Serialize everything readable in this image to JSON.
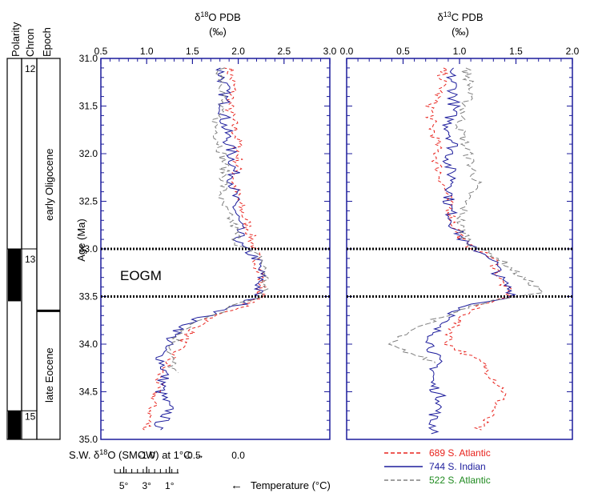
{
  "column_headers": [
    "Polarity",
    "Chron",
    "Epoch"
  ],
  "chrons": [
    {
      "label": "12",
      "age": 31.1
    },
    {
      "label": "13",
      "age": 33.1
    },
    {
      "label": "15",
      "age": 34.75
    }
  ],
  "polarity_normal_intervals": [
    [
      33.0,
      33.55
    ],
    [
      34.7,
      35.0
    ]
  ],
  "chron_boundaries": [
    33.0,
    34.7
  ],
  "epochs": [
    {
      "label": "early Oligocene",
      "from": 31.0,
      "to": 33.65
    },
    {
      "label": "late Eocene",
      "from": 33.65,
      "to": 35.0
    }
  ],
  "event_label": "EOGM",
  "event_lines": [
    33.0,
    33.5
  ],
  "bottom_axis": {
    "label": "S.W. δ¹⁸O (SMOW) at 1°C →",
    "label_pre": "S.W. δ",
    "label_sup": "18",
    "label_post": "O (SMOW) at 1°C",
    "label_arrow": "→",
    "ticks": [
      {
        "value": 1.0,
        "label": "-1.0"
      },
      {
        "value": 1.5,
        "label": "-0.5"
      },
      {
        "value": 2.0,
        "label": "0.0"
      }
    ]
  },
  "temperature_axis": {
    "label": "Temperature (°C)",
    "arrow": "←",
    "ticks": [
      {
        "value": 0.75,
        "label": "5°"
      },
      {
        "value": 1.0,
        "label": "3°"
      },
      {
        "value": 1.25,
        "label": "1°"
      }
    ],
    "range": [
      0.65,
      1.35
    ]
  },
  "colors": {
    "site_689": "#e8231d",
    "site_744": "#1c1c9c",
    "site_522": "#808080",
    "axis": "#1c1c9c",
    "label_689": "#e8231d",
    "label_744": "#1c1c9c",
    "label_522": "#1f8a1f"
  },
  "legend": [
    {
      "label": "689 S. Atlantic",
      "style": "dashed",
      "color": "#e8231d",
      "text_color": "#e8231d"
    },
    {
      "label": "744 S. Indian",
      "style": "solid",
      "color": "#1c1c9c",
      "text_color": "#1c1c9c"
    },
    {
      "label": "522 S. Atlantic",
      "style": "dashed",
      "color": "#808080",
      "text_color": "#1f8a1f"
    }
  ],
  "chart_data": [
    {
      "type": "line",
      "title": "δ¹⁸O PDB (‰)",
      "title_pre": "δ",
      "title_sup": "18",
      "title_post": "O PDB",
      "title_unit": "(‰)",
      "xlabel": "",
      "ylabel": "Age (Ma)",
      "xlim": [
        0.5,
        3.0
      ],
      "ylim": [
        35.0,
        31.0
      ],
      "x_ticks": [
        "0.5",
        "1.0",
        "1.5",
        "2.0",
        "2.5",
        "3.0"
      ],
      "y_ticks": [
        "31.0",
        "31.5",
        "32.0",
        "32.5",
        "33.0",
        "33.5",
        "34.0",
        "34.5",
        "35.0"
      ],
      "series": [
        {
          "name": "689 S. Atlantic",
          "points": [
            [
              31.1,
              1.9
            ],
            [
              31.3,
              1.95
            ],
            [
              31.5,
              1.9
            ],
            [
              31.7,
              1.95
            ],
            [
              31.9,
              2.0
            ],
            [
              32.1,
              2.0
            ],
            [
              32.3,
              1.95
            ],
            [
              32.5,
              2.0
            ],
            [
              32.75,
              2.1
            ],
            [
              32.9,
              2.15
            ],
            [
              33.1,
              2.2
            ],
            [
              33.3,
              2.25
            ],
            [
              33.5,
              2.25
            ],
            [
              33.6,
              2.05
            ],
            [
              33.75,
              1.65
            ],
            [
              33.9,
              1.45
            ],
            [
              34.1,
              1.3
            ],
            [
              34.3,
              1.15
            ],
            [
              34.5,
              1.1
            ],
            [
              34.7,
              1.05
            ],
            [
              34.9,
              1.0
            ]
          ]
        },
        {
          "name": "744 S. Indian",
          "points": [
            [
              31.1,
              1.8
            ],
            [
              31.3,
              1.85
            ],
            [
              31.5,
              1.85
            ],
            [
              31.7,
              1.85
            ],
            [
              31.9,
              1.9
            ],
            [
              32.1,
              1.95
            ],
            [
              32.3,
              1.95
            ],
            [
              32.5,
              1.95
            ],
            [
              32.75,
              2.0
            ],
            [
              32.95,
              2.0
            ],
            [
              33.1,
              2.2
            ],
            [
              33.3,
              2.25
            ],
            [
              33.5,
              2.2
            ],
            [
              33.6,
              2.0
            ],
            [
              33.75,
              1.5
            ],
            [
              33.9,
              1.3
            ],
            [
              34.1,
              1.15
            ],
            [
              34.3,
              1.2
            ],
            [
              34.5,
              1.15
            ],
            [
              34.7,
              1.25
            ],
            [
              34.9,
              1.1
            ]
          ]
        },
        {
          "name": "522 S. Atlantic",
          "points": [
            [
              31.1,
              1.8
            ],
            [
              31.3,
              1.85
            ],
            [
              31.5,
              1.8
            ],
            [
              31.7,
              1.75
            ],
            [
              31.9,
              1.8
            ],
            [
              32.1,
              1.85
            ],
            [
              32.3,
              1.85
            ],
            [
              32.5,
              1.8
            ],
            [
              32.75,
              1.95
            ],
            [
              32.95,
              2.0
            ],
            [
              33.1,
              2.25
            ],
            [
              33.3,
              2.3
            ],
            [
              33.5,
              2.25
            ],
            [
              33.6,
              1.95
            ],
            [
              33.75,
              1.6
            ],
            [
              33.9,
              1.35
            ],
            [
              34.1,
              1.25
            ],
            [
              34.3,
              1.3
            ]
          ]
        }
      ]
    },
    {
      "type": "line",
      "title": "δ¹³C PDB (‰)",
      "title_pre": "δ",
      "title_sup": "13",
      "title_post": "C PDB",
      "title_unit": "(‰)",
      "xlabel": "",
      "ylabel": "",
      "xlim": [
        0.0,
        2.0
      ],
      "ylim": [
        35.0,
        31.0
      ],
      "x_ticks": [
        "0.0",
        "0.5",
        "1.0",
        "1.5",
        "2.0"
      ],
      "series": [
        {
          "name": "689 S. Atlantic",
          "points": [
            [
              31.1,
              0.85
            ],
            [
              31.3,
              0.85
            ],
            [
              31.5,
              0.75
            ],
            [
              31.7,
              0.75
            ],
            [
              31.9,
              0.8
            ],
            [
              32.1,
              0.8
            ],
            [
              32.3,
              0.85
            ],
            [
              32.5,
              0.9
            ],
            [
              32.75,
              0.95
            ],
            [
              32.95,
              1.05
            ],
            [
              33.1,
              1.3
            ],
            [
              33.3,
              1.35
            ],
            [
              33.5,
              1.45
            ],
            [
              33.6,
              1.15
            ],
            [
              33.8,
              0.95
            ],
            [
              34.0,
              0.9
            ],
            [
              34.2,
              1.2
            ],
            [
              34.35,
              1.3
            ],
            [
              34.5,
              1.4
            ],
            [
              34.7,
              1.3
            ],
            [
              34.9,
              1.15
            ]
          ]
        },
        {
          "name": "744 S. Indian",
          "points": [
            [
              31.1,
              0.9
            ],
            [
              31.3,
              0.95
            ],
            [
              31.5,
              0.95
            ],
            [
              31.7,
              0.9
            ],
            [
              31.9,
              0.95
            ],
            [
              32.1,
              0.9
            ],
            [
              32.3,
              0.95
            ],
            [
              32.5,
              0.9
            ],
            [
              32.75,
              0.95
            ],
            [
              32.95,
              1.05
            ],
            [
              33.1,
              1.3
            ],
            [
              33.3,
              1.35
            ],
            [
              33.5,
              1.5
            ],
            [
              33.6,
              1.05
            ],
            [
              33.8,
              0.8
            ],
            [
              34.0,
              0.75
            ],
            [
              34.2,
              0.8
            ],
            [
              34.4,
              0.75
            ],
            [
              34.6,
              0.85
            ],
            [
              34.8,
              0.75
            ],
            [
              34.95,
              0.8
            ]
          ]
        },
        {
          "name": "522 S. Atlantic",
          "points": [
            [
              31.1,
              1.05
            ],
            [
              31.3,
              1.1
            ],
            [
              31.5,
              1.05
            ],
            [
              31.7,
              1.0
            ],
            [
              31.9,
              1.05
            ],
            [
              32.1,
              1.1
            ],
            [
              32.3,
              1.15
            ],
            [
              32.5,
              1.05
            ],
            [
              32.75,
              1.0
            ],
            [
              32.95,
              1.1
            ],
            [
              33.1,
              1.35
            ],
            [
              33.3,
              1.55
            ],
            [
              33.45,
              1.75
            ],
            [
              33.55,
              1.25
            ],
            [
              33.8,
              0.65
            ],
            [
              34.0,
              0.35
            ],
            [
              34.2,
              0.8
            ]
          ]
        }
      ]
    }
  ]
}
